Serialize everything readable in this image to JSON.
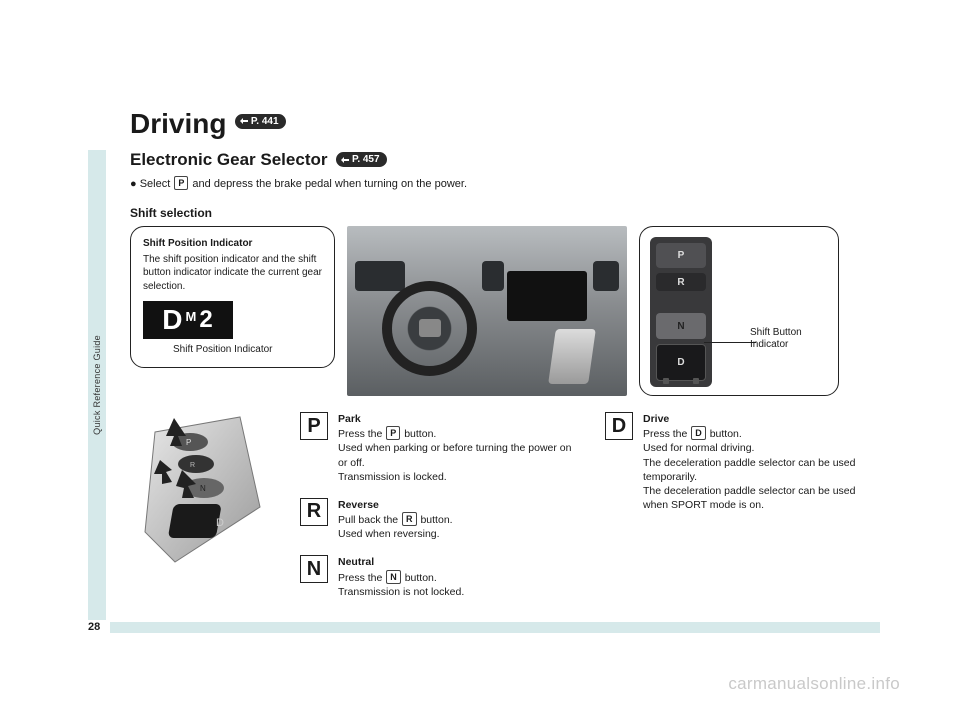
{
  "sidebar_label": "Quick Reference Guide",
  "title": "Driving",
  "title_page_ref": "P. 441",
  "subtitle": "Electronic Gear Selector",
  "subtitle_page_ref": "P. 457",
  "bullet_prefix": "● Select",
  "bullet_key": "P",
  "bullet_suffix": "and depress the brake pedal when turning on the power.",
  "section": "Shift selection",
  "callout_left": {
    "title": "Shift Position Indicator",
    "body": "The shift position indicator and the shift button indicator indicate the current gear selection.",
    "display": {
      "d": "D",
      "m": "M",
      "num": "2"
    },
    "caption": "Shift Position Indicator"
  },
  "callout_right": {
    "label_line1": "Shift Button",
    "label_line2": "Indicator",
    "buttons": [
      "P",
      "R",
      "",
      "N",
      "D"
    ]
  },
  "gears_left": [
    {
      "key": "P",
      "name": "Park",
      "lines": [
        "Press the |P| button.",
        "Used when parking or before turning the power on or off.",
        "Transmission is locked."
      ]
    },
    {
      "key": "R",
      "name": "Reverse",
      "lines": [
        "Pull back the |R| button.",
        "Used when reversing."
      ]
    },
    {
      "key": "N",
      "name": "Neutral",
      "lines": [
        "Press the |N| button.",
        "Transmission is not locked."
      ]
    }
  ],
  "gears_right": [
    {
      "key": "D",
      "name": "Drive",
      "lines": [
        "Press the |D| button.",
        "Used for normal driving.",
        "The deceleration paddle selector can be used temporarily.",
        "The deceleration paddle selector can be used when SPORT mode is on."
      ]
    }
  ],
  "page_number": "28",
  "watermark": "carmanualsonline.info",
  "colors": {
    "sidebar": "#d6e9ea",
    "badge_bg": "#2a2a2a",
    "text": "#1a1a1a"
  }
}
